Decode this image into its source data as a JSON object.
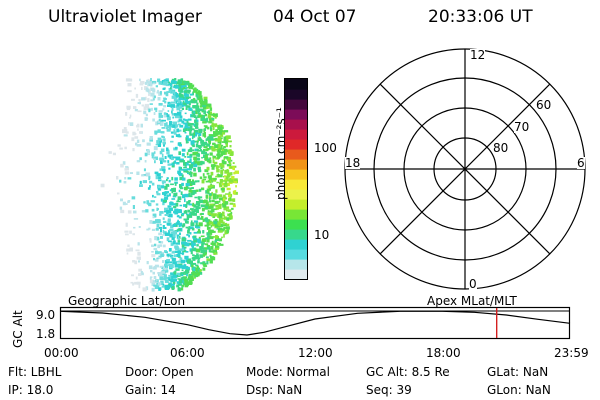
{
  "header": {
    "title": "Ultraviolet Imager",
    "date": "04 Oct 07",
    "time": "20:33:06 UT"
  },
  "colorbar": {
    "label": "photon cm⁻²s⁻¹",
    "ticks": [
      "100",
      "10"
    ]
  },
  "polar_plot": {
    "mlt_labels": [
      "12",
      "18",
      "6",
      "0"
    ],
    "lat_labels": [
      "80",
      "70",
      "60"
    ]
  },
  "timeline": {
    "ylabel": "GC Alt",
    "y_ticks": [
      "9.0",
      "1.8"
    ],
    "left_caption": "Geographic Lat/Lon",
    "right_caption": "Apex  MLat/MLT",
    "x_ticks": [
      "00:00",
      "06:00",
      "12:00",
      "18:00",
      "23:59"
    ],
    "marker_time": "20:33",
    "altitude_curve": {
      "x_hours": [
        0,
        2,
        4,
        6,
        7,
        8,
        8.8,
        9.6,
        10.5,
        12,
        14,
        16,
        18,
        19.5,
        21,
        22.5,
        24
      ],
      "y_re": [
        8.9,
        8.4,
        7.1,
        4.9,
        3.4,
        2.2,
        1.8,
        2.6,
        4.1,
        6.6,
        8.3,
        8.9,
        8.9,
        8.6,
        7.8,
        6.5,
        5.3
      ]
    }
  },
  "info": {
    "flt": "Flt:  LBHL",
    "ip": "IP:  18.0",
    "door": "Door:  Open",
    "gain": "Gain:  14",
    "mode": "Mode:  Normal",
    "dsp": "Dsp:       NaN",
    "gc_alt": "GC Alt:  8.5 Re",
    "seq": "Seq:  39",
    "glat": "GLat:        NaN",
    "glon": "GLon:       NaN"
  },
  "colors": {
    "colorbar": [
      "#e0eaee",
      "#b6e6ea",
      "#58dbe0",
      "#2fd2d2",
      "#37d88c",
      "#3ce050",
      "#78e636",
      "#c4ee2c",
      "#ecf24a",
      "#f8e838",
      "#f8c420",
      "#f09418",
      "#e85a1c",
      "#e02828",
      "#cc1a3c",
      "#a8104c",
      "#7c0c58",
      "#44083c",
      "#1a0628",
      "#0a0618"
    ],
    "marker": "#d42020"
  }
}
